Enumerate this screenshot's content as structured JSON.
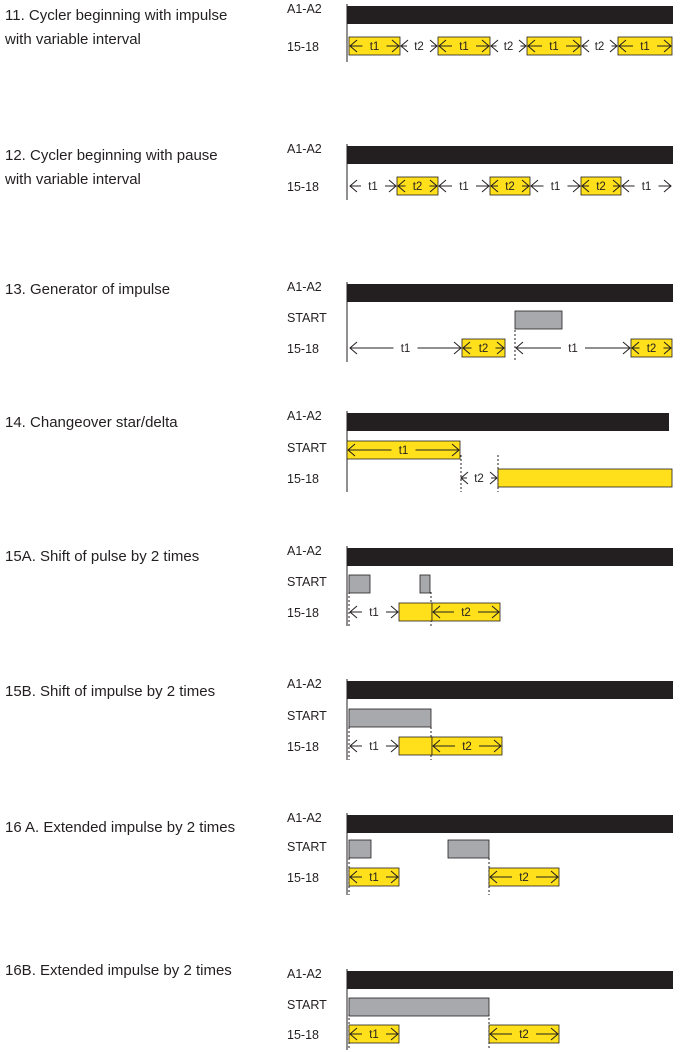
{
  "colors": {
    "black": "#231f20",
    "gray": "#a7a9ac",
    "yellow": "#ffe01b",
    "line": "#231f20"
  },
  "signals": {
    "supply": "A1-A2",
    "start": "START",
    "output": "15-18"
  },
  "diagrams": [
    {
      "id": "d11",
      "title_lines": [
        "11. Cycler beginning with impulse",
        "with variable interval"
      ],
      "rows": [
        "supply",
        "output"
      ],
      "segments": [
        {
          "row": "output",
          "kind": "pulse",
          "label": "t1",
          "style": "short"
        },
        {
          "row": "output",
          "kind": "gap",
          "label": "t2"
        },
        {
          "row": "output",
          "kind": "pulse",
          "label": "t1",
          "style": "short"
        },
        {
          "row": "output",
          "kind": "gap",
          "label": "t2"
        },
        {
          "row": "output",
          "kind": "pulse",
          "label": "t1",
          "style": "short"
        },
        {
          "row": "output",
          "kind": "gap",
          "label": "t2"
        },
        {
          "row": "output",
          "kind": "pulse",
          "label": "t1",
          "style": "short"
        }
      ]
    },
    {
      "id": "d12",
      "title_lines": [
        "12. Cycler beginning with pause",
        "with variable interval"
      ],
      "rows": [
        "supply",
        "output"
      ],
      "segments": [
        {
          "row": "output",
          "kind": "gap",
          "label": "t1"
        },
        {
          "row": "output",
          "kind": "pulse",
          "label": "t2",
          "style": "short"
        },
        {
          "row": "output",
          "kind": "gap",
          "label": "t1"
        },
        {
          "row": "output",
          "kind": "pulse",
          "label": "t2",
          "style": "short"
        },
        {
          "row": "output",
          "kind": "gap",
          "label": "t1"
        },
        {
          "row": "output",
          "kind": "pulse",
          "label": "t2",
          "style": "short"
        },
        {
          "row": "output",
          "kind": "gap",
          "label": "t1"
        }
      ]
    },
    {
      "id": "d13",
      "title_lines": [
        "13. Generator of impulse"
      ],
      "rows": [
        "supply",
        "start",
        "output"
      ],
      "segments": [
        {
          "row": "start",
          "kind": "pulse",
          "label": ""
        },
        {
          "row": "output",
          "kind": "gap",
          "label": "t1"
        },
        {
          "row": "output",
          "kind": "pulse",
          "label": "t2",
          "style": "short"
        },
        {
          "row": "output",
          "kind": "gap",
          "label": "t1"
        },
        {
          "row": "output",
          "kind": "pulse",
          "label": "t2",
          "style": "short"
        }
      ]
    },
    {
      "id": "d14",
      "title_lines": [
        "14. Changeover star/delta"
      ],
      "rows": [
        "supply",
        "start",
        "output"
      ],
      "segments": [
        {
          "row": "start",
          "kind": "pulse",
          "label": "t1"
        },
        {
          "row": "output",
          "kind": "gap",
          "label": "t2"
        },
        {
          "row": "output",
          "kind": "pulse",
          "label": ""
        }
      ]
    },
    {
      "id": "d15a",
      "title_lines": [
        "15A. Shift of pulse by 2 times"
      ],
      "rows": [
        "supply",
        "start",
        "output"
      ],
      "segments": [
        {
          "row": "start",
          "kind": "pulse",
          "label": ""
        },
        {
          "row": "start",
          "kind": "pulse",
          "label": ""
        },
        {
          "row": "output",
          "kind": "gap",
          "label": "t1"
        },
        {
          "row": "output",
          "kind": "pulse",
          "label": ""
        },
        {
          "row": "output",
          "kind": "pulse",
          "label": "t2"
        }
      ]
    },
    {
      "id": "d15b",
      "title_lines": [
        "15B. Shift of impulse by 2 times"
      ],
      "rows": [
        "supply",
        "start",
        "output"
      ],
      "segments": [
        {
          "row": "start",
          "kind": "pulse",
          "label": ""
        },
        {
          "row": "output",
          "kind": "gap",
          "label": "t1"
        },
        {
          "row": "output",
          "kind": "pulse",
          "label": ""
        },
        {
          "row": "output",
          "kind": "pulse",
          "label": "t2"
        }
      ]
    },
    {
      "id": "d16a",
      "title_lines": [
        "16 A. Extended impulse by 2 times"
      ],
      "rows": [
        "supply",
        "start",
        "output"
      ],
      "segments": [
        {
          "row": "start",
          "kind": "pulse",
          "label": ""
        },
        {
          "row": "start",
          "kind": "pulse",
          "label": ""
        },
        {
          "row": "output",
          "kind": "pulse",
          "label": "t1",
          "style": "short"
        },
        {
          "row": "output",
          "kind": "pulse",
          "label": "t2"
        }
      ]
    },
    {
      "id": "d16b",
      "title_lines": [
        "16B. Extended impulse by 2 times"
      ],
      "rows": [
        "supply",
        "start",
        "output"
      ],
      "segments": [
        {
          "row": "start",
          "kind": "pulse",
          "label": ""
        },
        {
          "row": "output",
          "kind": "pulse",
          "label": "t1",
          "style": "short"
        },
        {
          "row": "output",
          "kind": "pulse",
          "label": "t2"
        }
      ]
    }
  ]
}
